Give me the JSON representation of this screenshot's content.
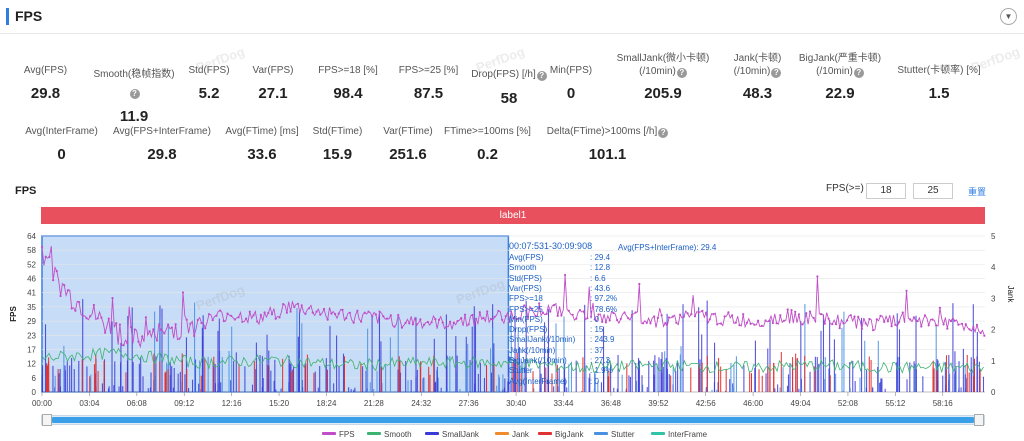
{
  "header": {
    "title": "FPS",
    "collapse_icon": "chevron-down-icon"
  },
  "stats_row1": [
    {
      "label": "Avg(FPS)",
      "value": "29.8",
      "help": false
    },
    {
      "label": "Smooth(稳帧指数)",
      "value": "11.9",
      "help": true
    },
    {
      "label": "Std(FPS)",
      "value": "5.2",
      "help": false
    },
    {
      "label": "Var(FPS)",
      "value": "27.1",
      "help": false
    },
    {
      "label": "FPS>=18 [%]",
      "value": "98.4",
      "help": false
    },
    {
      "label": "FPS>=25 [%]",
      "value": "87.5",
      "help": false
    },
    {
      "label": "Drop(FPS) [/h]",
      "value": "58",
      "help": true
    },
    {
      "label": "Min(FPS)",
      "value": "0",
      "help": false
    },
    {
      "label": "SmallJank(微小卡顿)",
      "label2": "(/10min)",
      "value": "205.9",
      "help": true
    },
    {
      "label": "Jank(卡顿)",
      "label2": "(/10min)",
      "value": "48.3",
      "help": true
    },
    {
      "label": "BigJank(严重卡顿)",
      "label2": "(/10min)",
      "value": "22.9",
      "help": true
    },
    {
      "label": "Stutter(卡顿率) [%]",
      "value": "1.5",
      "help": false
    }
  ],
  "stats_row2": [
    {
      "label": "Avg(InterFrame)",
      "value": "0",
      "help": false
    },
    {
      "label": "Avg(FPS+InterFrame)",
      "value": "29.8",
      "help": false
    },
    {
      "label": "Avg(FTime) [ms]",
      "value": "33.6",
      "help": false
    },
    {
      "label": "Std(FTime)",
      "value": "15.9",
      "help": false
    },
    {
      "label": "Var(FTime)",
      "value": "251.6",
      "help": false
    },
    {
      "label": "FTime>=100ms [%]",
      "value": "0.2",
      "help": false
    },
    {
      "label": "Delta(FTime)>100ms [/h]",
      "value": "101.1",
      "help": true
    }
  ],
  "chart_section": {
    "title": "FPS",
    "threshold_label": "FPS(>=)",
    "threshold_low": "18",
    "threshold_high": "25",
    "reset_label": "重置",
    "label_bar": "label1",
    "watermark": "PerfDog"
  },
  "selection_tooltip": {
    "range": "00:07:531-30:09:908",
    "extra": "Avg(FPS+InterFrame): 29.4",
    "rows": [
      {
        "k": "Avg(FPS)",
        "v": ": 29.4"
      },
      {
        "k": "Smooth",
        "v": ": 12.8"
      },
      {
        "k": "Std(FPS)",
        "v": ": 6.6"
      },
      {
        "k": "Var(FPS)",
        "v": ": 43.6"
      },
      {
        "k": "FPS>=18",
        "v": ": 97.2%"
      },
      {
        "k": "FPS>=25",
        "v": ": 78.6%"
      },
      {
        "k": "Min(FPS)",
        "v": ": 0"
      },
      {
        "k": "Drop(FPS)",
        "v": ": 15"
      },
      {
        "k": "SmallJank(/10min)",
        "v": ": 243.9"
      },
      {
        "k": "Jank(/10min)",
        "v": ": 37"
      },
      {
        "k": "BigJank(/10min)",
        "v": ": 27.3"
      },
      {
        "k": "Stutter",
        "v": ": 1.9%"
      },
      {
        "k": "Avg(InterFrame)",
        "v": ": 0"
      }
    ]
  },
  "legend": [
    {
      "name": "FPS",
      "color": "#c04ec8"
    },
    {
      "name": "Smooth",
      "color": "#3cb371"
    },
    {
      "name": "SmallJank",
      "color": "#3a3ad6"
    },
    {
      "name": "Jank",
      "color": "#f08a2c"
    },
    {
      "name": "BigJank",
      "color": "#e03030"
    },
    {
      "name": "Stutter",
      "color": "#4a90e2"
    },
    {
      "name": "InterFrame",
      "color": "#2fc4a8"
    }
  ],
  "chart_data": {
    "type": "line",
    "ylabel": "FPS",
    "y2label": "Jank",
    "ylim": [
      0,
      64
    ],
    "y2lim": [
      0,
      5
    ],
    "y_ticks": [
      "0",
      "6",
      "12",
      "17",
      "23",
      "29",
      "35",
      "41",
      "46",
      "52",
      "58",
      "64"
    ],
    "y2_ticks": [
      "0",
      "1",
      "2",
      "3",
      "4",
      "5"
    ],
    "x_ticks": [
      "00:00",
      "03:04",
      "06:08",
      "09:12",
      "12:16",
      "15:20",
      "18:24",
      "21:28",
      "24:32",
      "27:36",
      "30:40",
      "33:44",
      "36:48",
      "39:52",
      "42:56",
      "46:00",
      "49:04",
      "52:08",
      "55:12",
      "58:16"
    ],
    "selection": [
      "00:00",
      "30:10"
    ],
    "series": [
      {
        "name": "FPS",
        "x_minutes": [
          0,
          1,
          2,
          3,
          4,
          5,
          6,
          7,
          8,
          10,
          12,
          14,
          16,
          18,
          20,
          22,
          24,
          26,
          28,
          30,
          32,
          34,
          36,
          38,
          40,
          42,
          44,
          46,
          48,
          50,
          52,
          54,
          56,
          58,
          60,
          61
        ],
        "values": [
          58,
          45,
          38,
          33,
          28,
          24,
          21,
          22,
          25,
          28,
          32,
          30,
          35,
          33,
          31,
          30,
          29,
          28,
          30,
          31,
          34,
          33,
          30,
          31,
          29,
          31,
          30,
          29,
          31,
          30,
          29,
          28,
          30,
          29,
          27,
          26
        ]
      },
      {
        "name": "Smooth",
        "x_minutes": [
          0,
          5,
          10,
          15,
          20,
          25,
          30,
          35,
          40,
          45,
          50,
          55,
          61
        ],
        "values": [
          14,
          16,
          12,
          13,
          11,
          12,
          12,
          10,
          11,
          10,
          11,
          10,
          10
        ]
      }
    ]
  }
}
